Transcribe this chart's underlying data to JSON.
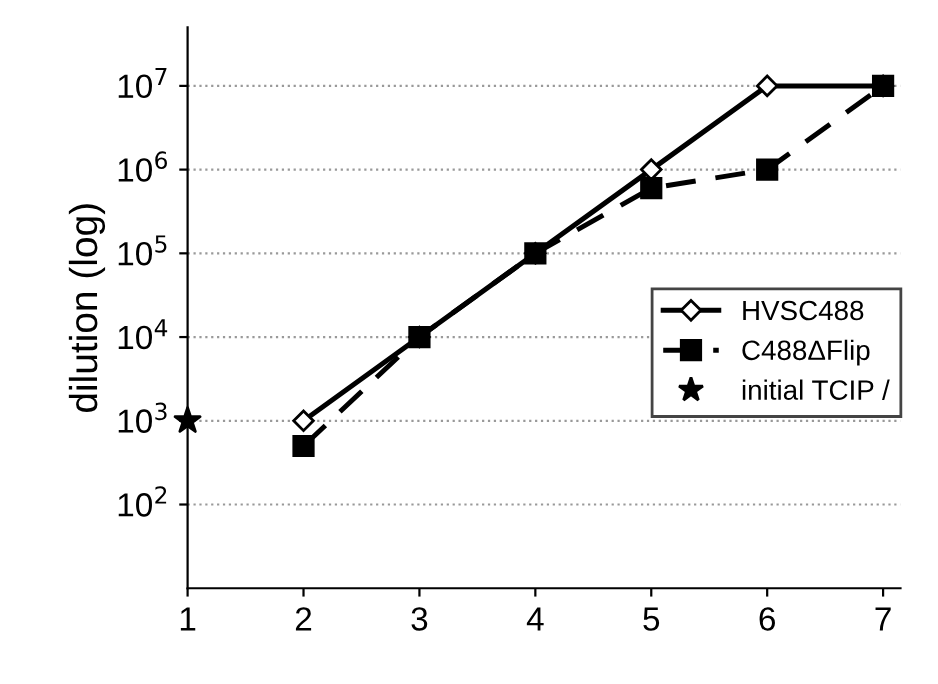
{
  "chart_data": {
    "type": "line",
    "ylabel": "dilution (log)",
    "log": "y",
    "x": [
      2,
      3,
      4,
      5,
      6,
      7
    ],
    "series": [
      {
        "name": "HVSC488",
        "color": "#000000",
        "values": [
          1000,
          10000,
          100000,
          1000000,
          10000000,
          10000000
        ],
        "marker": "diamond",
        "line_style": "solid"
      },
      {
        "name": "C488ΔFlip",
        "color": "#000000",
        "values": [
          500,
          10000,
          100000,
          600000,
          1000000,
          10000000
        ],
        "marker": "square",
        "line_style": "dashed"
      },
      {
        "name": "initial TCIP /",
        "type": "scatter",
        "color": "#000000",
        "x": [
          1
        ],
        "values": [
          1000
        ],
        "marker": "star"
      }
    ],
    "xlim": [
      1,
      7.15
    ],
    "xticks": [
      1,
      2,
      3,
      4,
      5,
      6,
      7
    ],
    "ylim": [
      10,
      50000000
    ],
    "yticks": [
      {
        "value": 100,
        "label": "10$^{2}$"
      },
      {
        "value": 1000,
        "label": "10$^{3}$"
      },
      {
        "value": 10000,
        "label": "10$^{4}$"
      },
      {
        "value": 100000,
        "label": "10$^{5}$"
      },
      {
        "value": 1000000,
        "label": "10$^{6}$"
      },
      {
        "value": 10000000,
        "label": "10$^{7}$"
      }
    ],
    "grid": "y",
    "legend": "right"
  }
}
